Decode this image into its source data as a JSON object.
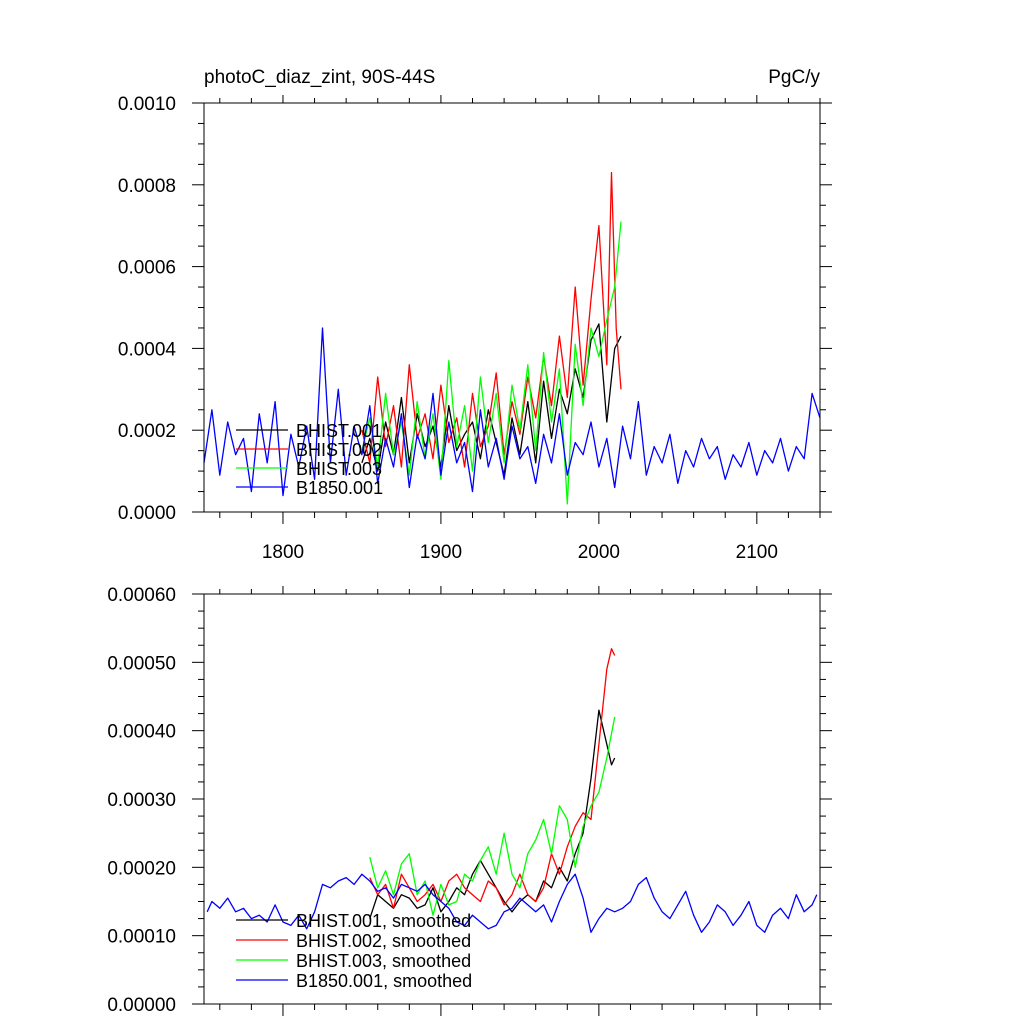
{
  "chart_data": [
    {
      "type": "line",
      "title": "photoC_diaz_zint, 90S-44S",
      "units": "PgC/y",
      "xlabel": "",
      "ylabel": "",
      "xlim": [
        1750,
        2140
      ],
      "ylim": [
        0,
        0.001
      ],
      "x_ticks": [
        1800,
        1900,
        2000,
        2100
      ],
      "x_tick_labels": [
        "1800",
        "1900",
        "2000",
        "2100"
      ],
      "y_ticks": [
        0,
        0.0002,
        0.0004,
        0.0006,
        0.0008,
        0.001
      ],
      "y_tick_labels": [
        "0.0000",
        "0.0002",
        "0.0004",
        "0.0006",
        "0.0008",
        "0.0010"
      ],
      "legend_position": "lower-left",
      "series": [
        {
          "name": "BHIST.001",
          "color": "#000000",
          "x": [
            1850,
            1855,
            1860,
            1865,
            1870,
            1875,
            1880,
            1885,
            1890,
            1895,
            1900,
            1905,
            1910,
            1915,
            1920,
            1925,
            1930,
            1935,
            1940,
            1945,
            1950,
            1955,
            1960,
            1965,
            1970,
            1975,
            1980,
            1985,
            1990,
            1995,
            2000,
            2005,
            2010,
            2014
          ],
          "y": [
            0.00012,
            0.00018,
            0.0001,
            0.00022,
            0.00014,
            0.00028,
            0.00012,
            0.00024,
            0.00016,
            0.00021,
            0.00011,
            0.00026,
            0.00015,
            0.00019,
            0.00022,
            0.00013,
            0.00025,
            0.00017,
            9e-05,
            0.00023,
            0.00014,
            0.00027,
            0.00012,
            0.00032,
            0.00018,
            0.0003,
            0.00024,
            0.00035,
            0.00028,
            0.00042,
            0.00046,
            0.00022,
            0.0004,
            0.00043
          ]
        },
        {
          "name": "BHIST.002",
          "color": "#ff0000",
          "x": [
            1850,
            1855,
            1860,
            1865,
            1870,
            1875,
            1880,
            1885,
            1890,
            1895,
            1900,
            1905,
            1910,
            1915,
            1920,
            1925,
            1930,
            1935,
            1940,
            1945,
            1950,
            1955,
            1960,
            1965,
            1970,
            1975,
            1980,
            1985,
            1990,
            1995,
            2000,
            2005,
            2008,
            2011,
            2014
          ],
          "y": [
            0.0002,
            0.00012,
            0.00033,
            0.00016,
            0.00026,
            0.00011,
            0.00036,
            0.00018,
            0.00024,
            0.00013,
            0.00031,
            0.00017,
            0.00023,
            0.00011,
            0.00029,
            0.00016,
            0.00021,
            0.00034,
            0.00014,
            0.00027,
            0.00019,
            0.00033,
            0.00023,
            0.00038,
            0.00026,
            0.00043,
            0.00028,
            0.00055,
            0.00031,
            0.00052,
            0.0007,
            0.00036,
            0.00083,
            0.00045,
            0.0003
          ]
        },
        {
          "name": "BHIST.003",
          "color": "#00ff00",
          "x": [
            1850,
            1855,
            1860,
            1865,
            1870,
            1875,
            1880,
            1885,
            1890,
            1895,
            1900,
            1905,
            1910,
            1915,
            1920,
            1925,
            1930,
            1935,
            1940,
            1945,
            1950,
            1955,
            1960,
            1965,
            1970,
            1975,
            1980,
            1985,
            1990,
            1995,
            2000,
            2005,
            2010,
            2014
          ],
          "y": [
            0.00015,
            0.00023,
            0.00011,
            0.00029,
            0.00014,
            0.00022,
            9e-05,
            0.00027,
            0.00013,
            0.00024,
            8e-05,
            0.00037,
            0.00016,
            0.00026,
            0.0001,
            0.00033,
            0.00017,
            0.00029,
            0.00012,
            0.00031,
            0.0002,
            0.00036,
            0.00015,
            0.00039,
            0.00022,
            0.00035,
            2e-05,
            0.00041,
            0.00026,
            0.00045,
            0.00038,
            0.00047,
            0.00055,
            0.00071
          ]
        },
        {
          "name": "B1850.001",
          "color": "#0000ff",
          "x": [
            1750,
            1755,
            1760,
            1765,
            1770,
            1775,
            1780,
            1785,
            1790,
            1795,
            1800,
            1805,
            1810,
            1815,
            1820,
            1825,
            1830,
            1835,
            1840,
            1845,
            1850,
            1855,
            1860,
            1865,
            1870,
            1875,
            1880,
            1885,
            1890,
            1895,
            1900,
            1905,
            1910,
            1915,
            1920,
            1925,
            1930,
            1935,
            1940,
            1945,
            1950,
            1955,
            1960,
            1965,
            1970,
            1975,
            1980,
            1985,
            1990,
            1995,
            2000,
            2005,
            2010,
            2015,
            2020,
            2025,
            2030,
            2035,
            2040,
            2045,
            2050,
            2055,
            2060,
            2065,
            2070,
            2075,
            2080,
            2085,
            2090,
            2095,
            2100,
            2105,
            2110,
            2115,
            2120,
            2125,
            2130,
            2135,
            2140
          ],
          "y": [
            0.00012,
            0.00025,
            9e-05,
            0.00022,
            0.00014,
            0.00018,
            5e-05,
            0.00024,
            0.00012,
            0.00027,
            4e-05,
            0.00019,
            0.00011,
            0.00021,
            8e-05,
            0.00045,
            0.00012,
            0.0003,
            9e-05,
            0.00021,
            0.00014,
            0.00026,
            7e-05,
            0.00018,
            0.00011,
            0.00024,
            6e-05,
            0.00019,
            0.00013,
            0.00029,
            9e-05,
            0.00022,
            0.00012,
            0.00017,
            5e-05,
            0.00025,
            0.00011,
            0.00018,
            8e-05,
            0.00021,
            0.00013,
            0.00016,
            7e-05,
            0.00019,
            0.00012,
            0.00024,
            9e-05,
            0.00017,
            0.00014,
            0.00022,
            0.00011,
            0.00018,
            6e-05,
            0.00021,
            0.00013,
            0.00027,
            9e-05,
            0.00016,
            0.00012,
            0.00019,
            7e-05,
            0.00015,
            0.00011,
            0.00018,
            0.00013,
            0.00016,
            8e-05,
            0.00014,
            0.00011,
            0.00017,
            9e-05,
            0.00015,
            0.00012,
            0.00018,
            0.0001,
            0.00016,
            0.00013,
            0.00029,
            0.00023
          ]
        }
      ]
    },
    {
      "type": "line",
      "title": "",
      "xlabel": "",
      "ylabel": "",
      "xlim": [
        1750,
        2140
      ],
      "ylim": [
        0,
        0.0006
      ],
      "x_ticks": [
        1800,
        1900,
        2000,
        2100
      ],
      "x_tick_labels": [],
      "y_ticks": [
        0,
        0.0001,
        0.0002,
        0.0003,
        0.0004,
        0.0005,
        0.0006
      ],
      "y_tick_labels": [
        "0.00000",
        "0.00010",
        "0.00020",
        "0.00030",
        "0.00040",
        "0.00050",
        "0.00060"
      ],
      "legend_position": "lower-left",
      "series": [
        {
          "name": "BHIST.001, smoothed",
          "color": "#000000",
          "x": [
            1855,
            1860,
            1865,
            1870,
            1875,
            1880,
            1885,
            1890,
            1895,
            1900,
            1905,
            1910,
            1915,
            1920,
            1925,
            1930,
            1935,
            1940,
            1945,
            1950,
            1955,
            1960,
            1965,
            1970,
            1975,
            1980,
            1985,
            1990,
            1995,
            2000,
            2005,
            2008,
            2010
          ],
          "y": [
            0.000125,
            0.00016,
            0.00015,
            0.00014,
            0.00016,
            0.000155,
            0.00014,
            0.000145,
            0.00017,
            0.000135,
            0.00015,
            0.00017,
            0.00016,
            0.00019,
            0.00021,
            0.00019,
            0.00017,
            0.00015,
            0.000135,
            0.00015,
            0.00016,
            0.00015,
            0.00018,
            0.00017,
            0.0002,
            0.00018,
            0.00022,
            0.00025,
            0.00033,
            0.00043,
            0.00038,
            0.00035,
            0.00036
          ]
        },
        {
          "name": "BHIST.002, smoothed",
          "color": "#ff0000",
          "x": [
            1855,
            1860,
            1865,
            1870,
            1875,
            1880,
            1885,
            1890,
            1895,
            1900,
            1905,
            1910,
            1915,
            1920,
            1925,
            1930,
            1935,
            1940,
            1945,
            1950,
            1955,
            1960,
            1965,
            1970,
            1975,
            1980,
            1985,
            1990,
            1995,
            2000,
            2005,
            2008,
            2010
          ],
          "y": [
            0.000185,
            0.00016,
            0.000175,
            0.00014,
            0.00019,
            0.00017,
            0.00015,
            0.00016,
            0.000175,
            0.00015,
            0.00018,
            0.00019,
            0.00017,
            0.00016,
            0.00015,
            0.00018,
            0.00017,
            0.000145,
            0.00016,
            0.00019,
            0.00016,
            0.00015,
            0.00017,
            0.00022,
            0.00019,
            0.00023,
            0.00026,
            0.00028,
            0.00027,
            0.00038,
            0.00049,
            0.00052,
            0.00051
          ]
        },
        {
          "name": "BHIST.003, smoothed",
          "color": "#00ff00",
          "x": [
            1855,
            1860,
            1865,
            1870,
            1875,
            1880,
            1885,
            1890,
            1895,
            1900,
            1905,
            1910,
            1915,
            1920,
            1925,
            1930,
            1935,
            1940,
            1945,
            1950,
            1955,
            1960,
            1965,
            1970,
            1975,
            1980,
            1985,
            1990,
            1995,
            2000,
            2005,
            2010
          ],
          "y": [
            0.000215,
            0.00017,
            0.000195,
            0.00016,
            0.000205,
            0.00022,
            0.00016,
            0.00018,
            0.00013,
            0.000175,
            0.000145,
            0.00015,
            0.00019,
            0.00018,
            0.00021,
            0.00023,
            0.00019,
            0.00025,
            0.00019,
            0.00017,
            0.00022,
            0.00024,
            0.00027,
            0.00022,
            0.00029,
            0.00027,
            0.0002,
            0.00026,
            0.00029,
            0.00031,
            0.00036,
            0.00042
          ]
        },
        {
          "name": "B1850.001, smoothed",
          "color": "#0000ff",
          "x": [
            1752,
            1755,
            1760,
            1765,
            1770,
            1775,
            1780,
            1785,
            1790,
            1795,
            1800,
            1805,
            1810,
            1815,
            1820,
            1825,
            1830,
            1835,
            1840,
            1845,
            1850,
            1855,
            1860,
            1865,
            1870,
            1875,
            1880,
            1885,
            1890,
            1895,
            1900,
            1905,
            1910,
            1915,
            1920,
            1925,
            1930,
            1935,
            1940,
            1945,
            1950,
            1955,
            1960,
            1965,
            1970,
            1975,
            1980,
            1985,
            1990,
            1995,
            2000,
            2005,
            2010,
            2015,
            2020,
            2025,
            2030,
            2035,
            2040,
            2045,
            2050,
            2055,
            2060,
            2065,
            2070,
            2075,
            2080,
            2085,
            2090,
            2095,
            2100,
            2105,
            2110,
            2115,
            2120,
            2125,
            2130,
            2135,
            2138
          ],
          "y": [
            0.000135,
            0.00015,
            0.00014,
            0.000155,
            0.000135,
            0.00014,
            0.000125,
            0.00013,
            0.00012,
            0.000145,
            0.00012,
            0.000115,
            0.00013,
            0.00011,
            0.000135,
            0.000175,
            0.00017,
            0.00018,
            0.000185,
            0.000175,
            0.00019,
            0.00018,
            0.000165,
            0.00017,
            0.000155,
            0.000175,
            0.00017,
            0.000165,
            0.000175,
            0.00016,
            0.00015,
            0.00014,
            0.00012,
            0.000115,
            0.00013,
            0.00012,
            0.00011,
            0.000115,
            0.000135,
            0.00014,
            0.000155,
            0.000145,
            0.000135,
            0.000145,
            0.00012,
            0.00015,
            0.000175,
            0.00019,
            0.000155,
            0.000105,
            0.000125,
            0.00014,
            0.000135,
            0.00014,
            0.00015,
            0.000175,
            0.000185,
            0.000155,
            0.000135,
            0.000125,
            0.000145,
            0.000165,
            0.00013,
            0.000105,
            0.00012,
            0.000145,
            0.000135,
            0.000115,
            0.00013,
            0.00015,
            0.000115,
            0.000105,
            0.00013,
            0.00014,
            0.000125,
            0.00016,
            0.000135,
            0.000145,
            0.00016
          ]
        }
      ]
    }
  ]
}
